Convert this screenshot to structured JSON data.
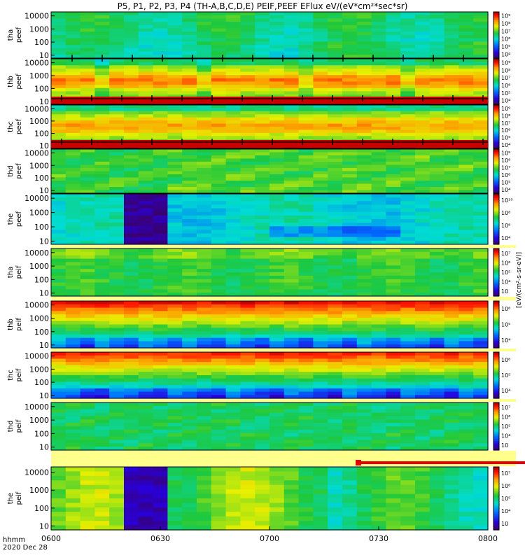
{
  "title": "P5, P1, P2, P3, P4 (TH-A,B,C,D,E) PEIF,PEEF EFlux eV/(eV*cm²*sec*sr)",
  "footer": {
    "line1": "hhmm",
    "line2": "2020 Dec 28"
  },
  "colorbar_unit_text": "[eV/(cm²-s-sr-eV)]",
  "chart_data": {
    "type": "heatmap",
    "x_ticks": [
      "0600",
      "0630",
      "0700",
      "0730",
      "0800"
    ],
    "x_range": [
      "0600",
      "0800"
    ],
    "y_scale": "log",
    "y_range": [
      6,
      20000
    ],
    "y_ticks": [
      "10",
      "100",
      "1000",
      "10000"
    ],
    "panels": [
      {
        "label": "tha\npeef",
        "cb_ticks": [
          "10⁴",
          "10⁵",
          "10⁶",
          "10⁷",
          "10⁸",
          "10⁹"
        ],
        "cb_min": 4,
        "cb_max": 9
      },
      {
        "label": "thb\npeef",
        "cb_ticks": [
          "10⁴",
          "10⁵",
          "10⁶",
          "10⁷",
          "10⁸",
          "10⁹"
        ],
        "cb_min": 4,
        "cb_max": 9
      },
      {
        "label": "thc\npeef",
        "cb_ticks": [
          "10⁴",
          "10⁵",
          "10⁶",
          "10⁷",
          "10⁸",
          "10⁹"
        ],
        "cb_min": 4,
        "cb_max": 9
      },
      {
        "label": "thd\npeef",
        "cb_ticks": [
          "10⁴",
          "10⁵",
          "10⁶",
          "10⁷",
          "10⁸",
          "10⁹"
        ],
        "cb_min": 4,
        "cb_max": 9
      },
      {
        "label": "the\npeef",
        "cb_ticks": [
          "10⁴",
          "10⁶",
          "10⁸",
          "10¹⁰"
        ],
        "cb_min": 3,
        "cb_max": 10
      },
      {
        "label": "tha\npeif",
        "cb_ticks": [
          "10⁳",
          "10⁴",
          "10⁵",
          "10⁶",
          "10⁷"
        ],
        "cb_min": 3,
        "cb_max": 7
      },
      {
        "label": "thb\npeif",
        "cb_ticks": [
          "10⁴",
          "10⁵",
          "10⁶"
        ],
        "cb_min": 3,
        "cb_max": 6.5
      },
      {
        "label": "thc\npeif",
        "cb_ticks": [
          "10⁴",
          "10⁵",
          "10⁶"
        ],
        "cb_min": 3,
        "cb_max": 6.5
      },
      {
        "label": "thd\npeif",
        "cb_ticks": [
          "10⁳",
          "10⁴",
          "10⁵",
          "10⁶",
          "10⁷"
        ],
        "cb_min": 3,
        "cb_max": 7
      },
      {
        "label": "the\npeif",
        "cb_ticks": [
          "10⁳",
          "10⁴",
          "10⁵",
          "10⁶",
          "10⁷"
        ],
        "cb_min": 3,
        "cb_max": 7
      }
    ]
  }
}
